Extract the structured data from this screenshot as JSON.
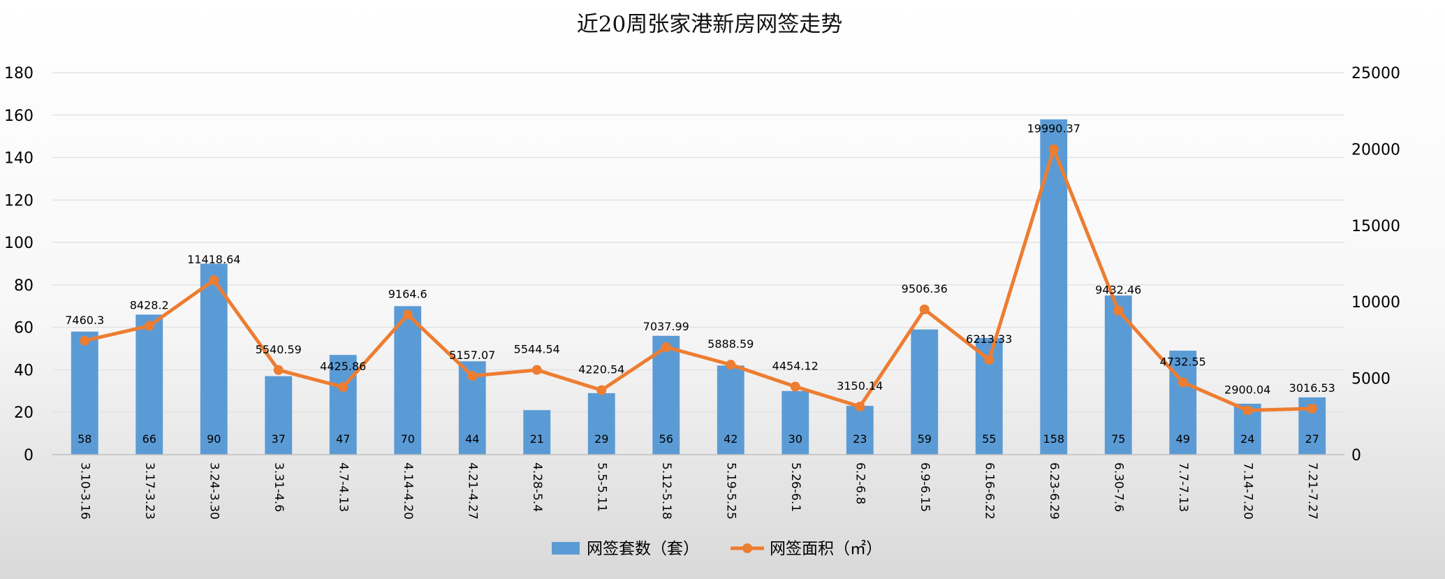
{
  "chart_data": {
    "type": "bar",
    "title": "近20周张家港新房网签走势",
    "categories": [
      "3.10-3.16",
      "3.17-3.23",
      "3.24-3.30",
      "3.31-4.6",
      "4.7-4.13",
      "4.14-4.20",
      "4.21-4.27",
      "4.28-5.4",
      "5.5-5.11",
      "5.12-5.18",
      "5.19-5.25",
      "5.26-6.1",
      "6.2-6.8",
      "6.9-6.15",
      "6.16-6.22",
      "6.23-6.29",
      "6.30-7.6",
      "7.7-7.13",
      "7.14-7.20",
      "7.21-7.27"
    ],
    "series": [
      {
        "name": "网签套数（套）",
        "type": "bar",
        "axis": "left",
        "color": "#5b9bd5",
        "values": [
          58,
          66,
          90,
          37,
          47,
          70,
          44,
          21,
          29,
          56,
          42,
          30,
          23,
          59,
          55,
          158,
          75,
          49,
          24,
          27
        ]
      },
      {
        "name": "网签面积（㎡）",
        "type": "line",
        "axis": "right",
        "color": "#ed7d31",
        "values": [
          7460.3,
          8428.2,
          11418.64,
          5540.59,
          4425.86,
          9164.6,
          5157.07,
          5544.54,
          4220.54,
          7037.99,
          5888.59,
          4454.12,
          3150.14,
          9506.36,
          6213.33,
          19990.37,
          9432.46,
          4732.55,
          2900.04,
          3016.53
        ],
        "labels": [
          "7460.3",
          "8428.2",
          "11418.64",
          "5540.59",
          "4425.86",
          "9164.6",
          "5157.07",
          "5544.54",
          "4220.54",
          "7037.99",
          "5888.59",
          "4454.12",
          "3150.14",
          "9506.36",
          "6213.33",
          "19990.37",
          "9432.46",
          "4732.55",
          "2900.04",
          "3016.53"
        ]
      }
    ],
    "y_left": {
      "ylim": [
        0,
        180
      ],
      "ticks": [
        0,
        20,
        40,
        60,
        80,
        100,
        120,
        140,
        160,
        180
      ]
    },
    "y_right": {
      "ylim": [
        0,
        25000
      ],
      "ticks": [
        0,
        5000,
        10000,
        15000,
        20000,
        25000
      ]
    },
    "grid": true,
    "legend_position": "bottom"
  }
}
